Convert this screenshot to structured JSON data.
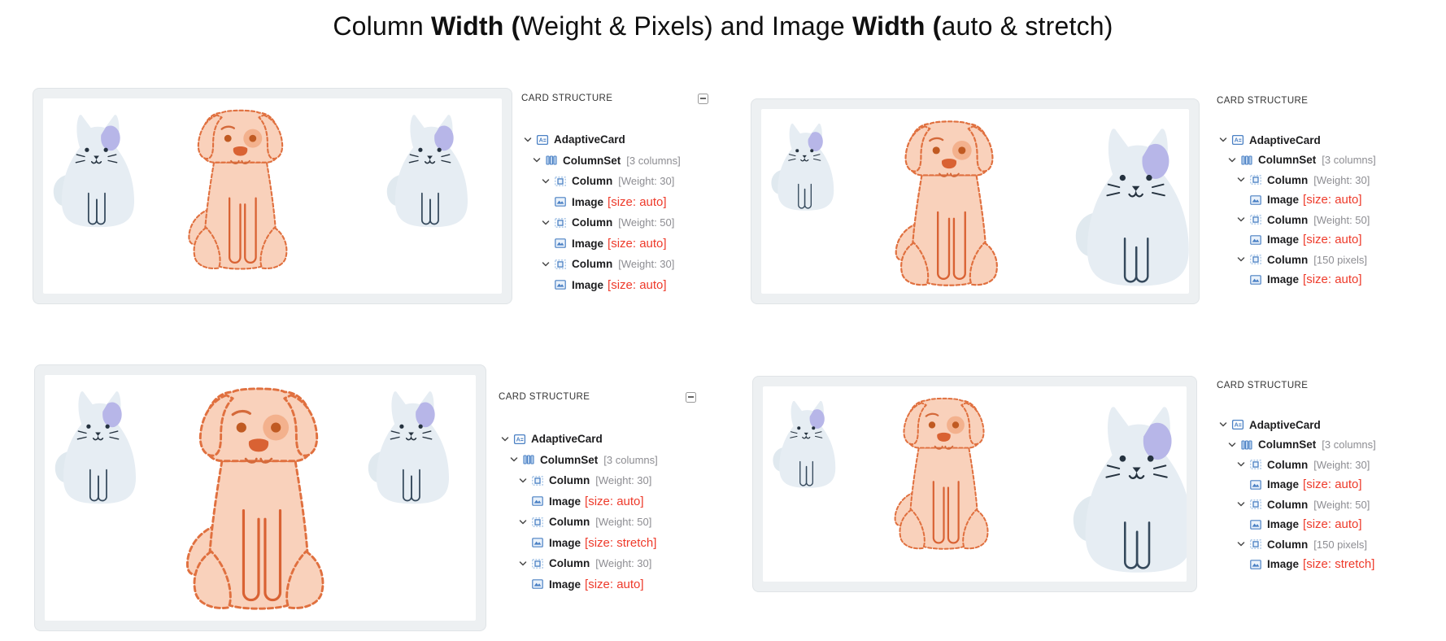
{
  "title": {
    "segments": [
      {
        "text": "Column ",
        "bold": false
      },
      {
        "text": "Width (",
        "bold": true
      },
      {
        "text": "Weight & Pixels) and Image ",
        "bold": false
      },
      {
        "text": "Width (",
        "bold": true
      },
      {
        "text": "auto & stretch)",
        "bold": false
      }
    ]
  },
  "colors": {
    "annotation_red": "#ee3a2a",
    "annotation_gray": "#8d8d92",
    "label_dark": "#1d1d1f",
    "icon_blue": "#4a80c4",
    "preview_frame": "#edf0f2"
  },
  "quadrants": [
    {
      "id": "top-left",
      "panel": {
        "title": "CARD STRUCTURE",
        "collapse_icon": "minus-box-icon",
        "has_collapse": true
      },
      "preview": {
        "images": [
          "cat",
          "dog",
          "cat"
        ]
      },
      "tree": [
        {
          "icon": "adaptive-card-icon",
          "label": "AdaptiveCard",
          "annotation": "",
          "highlight": "",
          "expandable": true,
          "level": 0
        },
        {
          "icon": "column-set-icon",
          "label": "ColumnSet",
          "annotation": "[3 columns]",
          "highlight": "",
          "expandable": true,
          "level": 1
        },
        {
          "icon": "column-icon",
          "label": "Column",
          "annotation": "[Weight: 30]",
          "highlight": "",
          "expandable": true,
          "level": 2
        },
        {
          "icon": "image-icon",
          "label": "Image",
          "annotation": "",
          "highlight": "[size: auto]",
          "expandable": false,
          "level": 3
        },
        {
          "icon": "column-icon",
          "label": "Column",
          "annotation": "[Weight: 50]",
          "highlight": "",
          "expandable": true,
          "level": 2
        },
        {
          "icon": "image-icon",
          "label": "Image",
          "annotation": "",
          "highlight": "[size: auto]",
          "expandable": false,
          "level": 3
        },
        {
          "icon": "column-icon",
          "label": "Column",
          "annotation": "[Weight: 30]",
          "highlight": "",
          "expandable": true,
          "level": 2
        },
        {
          "icon": "image-icon",
          "label": "Image",
          "annotation": "",
          "highlight": "[size: auto]",
          "expandable": false,
          "level": 3
        }
      ]
    },
    {
      "id": "top-right",
      "panel": {
        "title": "CARD STRUCTURE",
        "collapse_icon": "minus-box-icon",
        "has_collapse": false
      },
      "preview": {
        "images": [
          "cat",
          "dog",
          "cat"
        ]
      },
      "tree": [
        {
          "icon": "adaptive-card-icon",
          "label": "AdaptiveCard",
          "annotation": "",
          "highlight": "",
          "expandable": true,
          "level": 0
        },
        {
          "icon": "column-set-icon",
          "label": "ColumnSet",
          "annotation": "[3 columns]",
          "highlight": "",
          "expandable": true,
          "level": 1
        },
        {
          "icon": "column-icon",
          "label": "Column",
          "annotation": "[Weight: 30]",
          "highlight": "",
          "expandable": true,
          "level": 2
        },
        {
          "icon": "image-icon",
          "label": "Image",
          "annotation": "",
          "highlight": "[size: auto]",
          "expandable": false,
          "level": 3
        },
        {
          "icon": "column-icon",
          "label": "Column",
          "annotation": "[Weight: 50]",
          "highlight": "",
          "expandable": true,
          "level": 2
        },
        {
          "icon": "image-icon",
          "label": "Image",
          "annotation": "",
          "highlight": "[size: auto]",
          "expandable": false,
          "level": 3
        },
        {
          "icon": "column-icon",
          "label": "Column",
          "annotation": "[150 pixels]",
          "highlight": "",
          "expandable": true,
          "level": 2
        },
        {
          "icon": "image-icon",
          "label": "Image",
          "annotation": "",
          "highlight": "[size: auto]",
          "expandable": false,
          "level": 3
        }
      ]
    },
    {
      "id": "bottom-left",
      "panel": {
        "title": "CARD STRUCTURE",
        "collapse_icon": "minus-box-icon",
        "has_collapse": true
      },
      "preview": {
        "images": [
          "cat",
          "dog",
          "cat"
        ]
      },
      "tree": [
        {
          "icon": "adaptive-card-icon",
          "label": "AdaptiveCard",
          "annotation": "",
          "highlight": "",
          "expandable": true,
          "level": 0
        },
        {
          "icon": "column-set-icon",
          "label": "ColumnSet",
          "annotation": "[3 columns]",
          "highlight": "",
          "expandable": true,
          "level": 1
        },
        {
          "icon": "column-icon",
          "label": "Column",
          "annotation": "[Weight: 30]",
          "highlight": "",
          "expandable": true,
          "level": 2
        },
        {
          "icon": "image-icon",
          "label": "Image",
          "annotation": "",
          "highlight": "[size: auto]",
          "expandable": false,
          "level": 3
        },
        {
          "icon": "column-icon",
          "label": "Column",
          "annotation": "[Weight: 50]",
          "highlight": "",
          "expandable": true,
          "level": 2
        },
        {
          "icon": "image-icon",
          "label": "Image",
          "annotation": "",
          "highlight": "[size: stretch]",
          "expandable": false,
          "level": 3
        },
        {
          "icon": "column-icon",
          "label": "Column",
          "annotation": "[Weight: 30]",
          "highlight": "",
          "expandable": true,
          "level": 2
        },
        {
          "icon": "image-icon",
          "label": "Image",
          "annotation": "",
          "highlight": "[size: auto]",
          "expandable": false,
          "level": 3
        }
      ]
    },
    {
      "id": "bottom-right",
      "panel": {
        "title": "CARD STRUCTURE",
        "collapse_icon": "minus-box-icon",
        "has_collapse": false
      },
      "preview": {
        "images": [
          "cat",
          "dog",
          "cat"
        ]
      },
      "tree": [
        {
          "icon": "adaptive-card-icon",
          "label": "AdaptiveCard",
          "annotation": "",
          "highlight": "",
          "expandable": true,
          "level": 0
        },
        {
          "icon": "column-set-icon",
          "label": "ColumnSet",
          "annotation": "[3 columns]",
          "highlight": "",
          "expandable": true,
          "level": 1
        },
        {
          "icon": "column-icon",
          "label": "Column",
          "annotation": "[Weight: 30]",
          "highlight": "",
          "expandable": true,
          "level": 2
        },
        {
          "icon": "image-icon",
          "label": "Image",
          "annotation": "",
          "highlight": "[size: auto]",
          "expandable": false,
          "level": 3
        },
        {
          "icon": "column-icon",
          "label": "Column",
          "annotation": "[Weight: 50]",
          "highlight": "",
          "expandable": true,
          "level": 2
        },
        {
          "icon": "image-icon",
          "label": "Image",
          "annotation": "",
          "highlight": "[size: auto]",
          "expandable": false,
          "level": 3
        },
        {
          "icon": "column-icon",
          "label": "Column",
          "annotation": "[150 pixels]",
          "highlight": "",
          "expandable": true,
          "level": 2
        },
        {
          "icon": "image-icon",
          "label": "Image",
          "annotation": "",
          "highlight": "[size: stretch]",
          "expandable": false,
          "level": 3
        }
      ]
    }
  ]
}
